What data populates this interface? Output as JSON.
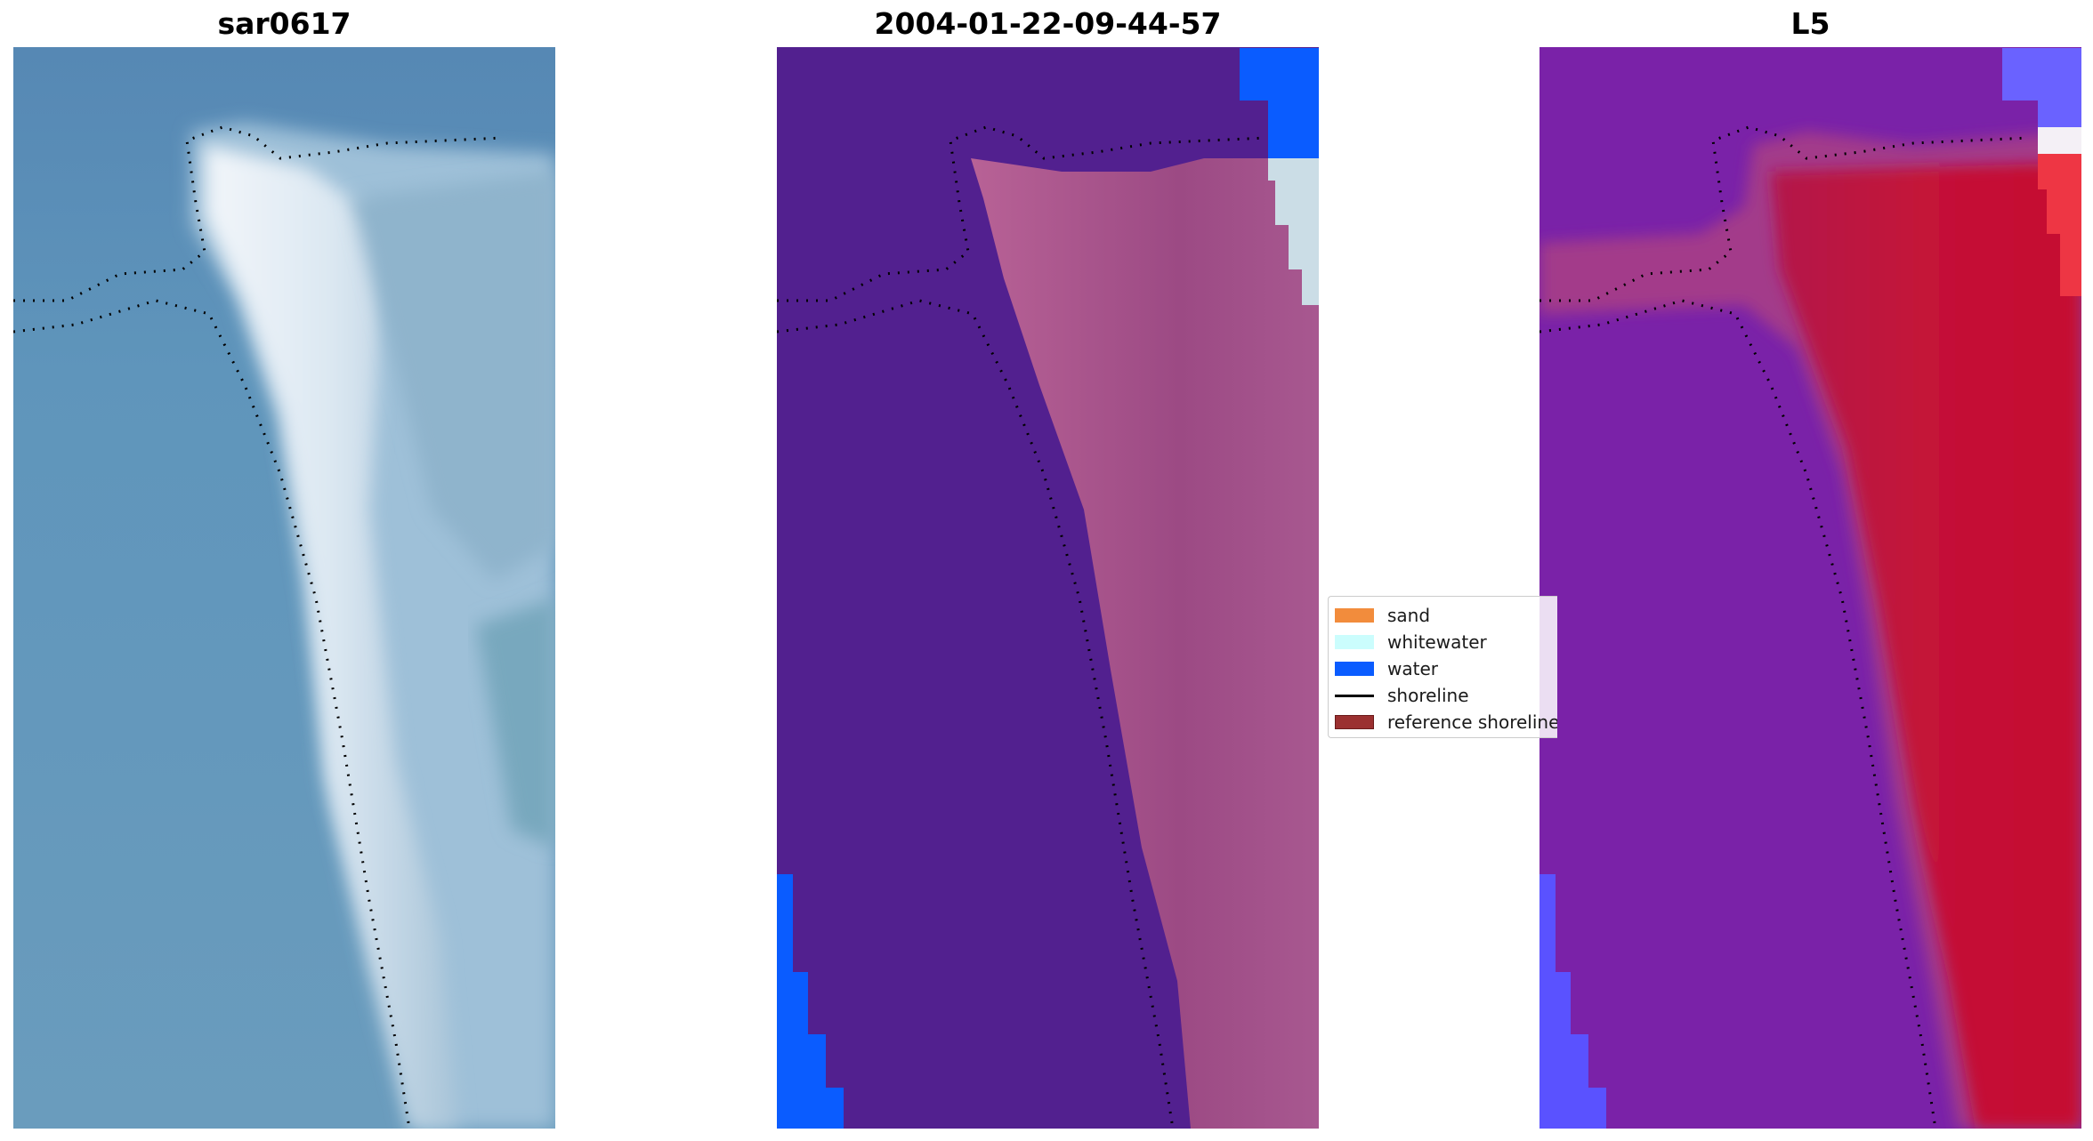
{
  "panels": [
    {
      "title": "sar0617"
    },
    {
      "title": "2004-01-22-09-44-57"
    },
    {
      "title": "L5"
    }
  ],
  "legend": {
    "items": [
      {
        "label": "sand",
        "color": "#f28c3c",
        "kind": "patch"
      },
      {
        "label": "whitewater",
        "color": "#cbfdfd",
        "kind": "patch"
      },
      {
        "label": "water",
        "color": "#0a5cff",
        "kind": "patch"
      },
      {
        "label": "shoreline",
        "color": "#000000",
        "kind": "line"
      },
      {
        "label": "reference shoreline",
        "color": "#9b3030",
        "kind": "patch"
      }
    ]
  },
  "colors": {
    "rgb_water": "#5c94b8",
    "rgb_beach": "#e6ecf2",
    "class_sand_overlay": "#b45a8c",
    "class_background": "#52208f",
    "class_water": "#0a5cff",
    "class_whitewater": "#cbdde6",
    "index_land": "#c4143a",
    "index_water": "#7420a6",
    "index_strong_water": "#5052ff"
  }
}
